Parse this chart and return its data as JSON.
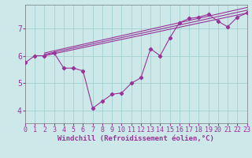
{
  "xlabel": "Windchill (Refroidissement éolien,°C)",
  "bg_color": "#cce8e8",
  "line_color": "#993399",
  "grid_color": "#99cccc",
  "xlim": [
    0,
    23
  ],
  "ylim": [
    3.55,
    7.85
  ],
  "xticks": [
    0,
    1,
    2,
    3,
    4,
    5,
    6,
    7,
    8,
    9,
    10,
    11,
    12,
    13,
    14,
    15,
    16,
    17,
    18,
    19,
    20,
    21,
    22,
    23
  ],
  "yticks": [
    4,
    5,
    6,
    7
  ],
  "main_x": [
    0,
    1,
    2,
    3,
    4,
    5,
    6,
    7,
    8,
    9,
    10,
    11,
    12,
    13,
    14,
    15,
    16,
    17,
    18,
    19,
    20,
    21,
    22,
    23
  ],
  "main_y": [
    5.75,
    6.0,
    6.0,
    6.1,
    5.55,
    5.55,
    5.45,
    4.1,
    4.35,
    4.6,
    4.65,
    5.0,
    5.2,
    6.25,
    6.0,
    6.65,
    7.2,
    7.35,
    7.4,
    7.5,
    7.25,
    7.05,
    7.4,
    7.55
  ],
  "straight_lines": [
    {
      "x": [
        2,
        23
      ],
      "y": [
        6.0,
        7.55
      ]
    },
    {
      "x": [
        2,
        23
      ],
      "y": [
        6.05,
        7.65
      ]
    },
    {
      "x": [
        2,
        23
      ],
      "y": [
        6.1,
        7.75
      ]
    }
  ],
  "font_size": 6.5,
  "tick_font_size": 6,
  "marker": "D",
  "marker_size": 2.2,
  "line_width": 0.8
}
